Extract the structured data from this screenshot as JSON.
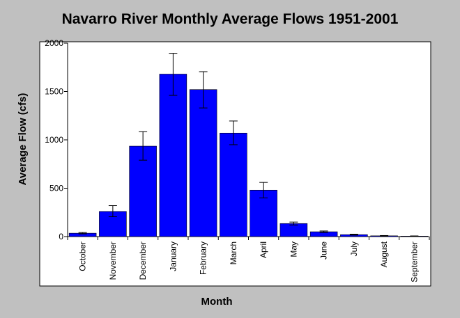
{
  "chart_data": {
    "type": "bar",
    "title": "Navarro River Monthly Average Flows 1951-2001",
    "xlabel": "Month",
    "ylabel": "Average Flow (cfs)",
    "ylim": [
      0,
      2000
    ],
    "yticks": [
      "0",
      "500",
      "1000",
      "1500",
      "2000"
    ],
    "categories": [
      "October",
      "November",
      "December",
      "January",
      "February",
      "March",
      "April",
      "May",
      "June",
      "July",
      "August",
      "September"
    ],
    "values": [
      35,
      260,
      935,
      1680,
      1520,
      1070,
      480,
      135,
      50,
      20,
      8,
      5
    ],
    "error_low": [
      28,
      205,
      790,
      1460,
      1330,
      950,
      400,
      120,
      42,
      15,
      5,
      3
    ],
    "error_high": [
      42,
      320,
      1085,
      1895,
      1705,
      1195,
      560,
      150,
      58,
      25,
      11,
      7
    ],
    "grid": false,
    "legend": "none",
    "colors": {
      "bar": "#0000ff",
      "background": "#c0c0c0",
      "plot_background": "#ffffff",
      "axis": "#000000"
    }
  }
}
